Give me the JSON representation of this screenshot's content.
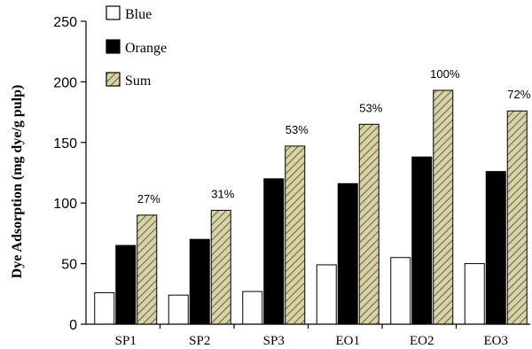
{
  "chart_data": {
    "type": "bar",
    "categories": [
      "SP1",
      "SP2",
      "SP3",
      "EO1",
      "EO2",
      "EO3"
    ],
    "series": [
      {
        "name": "Blue",
        "values": [
          26,
          24,
          27,
          49,
          55,
          50
        ],
        "color": "#ffffff"
      },
      {
        "name": "Orange",
        "values": [
          65,
          70,
          120,
          116,
          138,
          126
        ],
        "color": "#000000"
      },
      {
        "name": "Sum",
        "values": [
          90,
          94,
          147,
          165,
          193,
          176
        ],
        "color": "#d8d2a4"
      }
    ],
    "annotations": [
      "27%",
      "31%",
      "53%",
      "53%",
      "100%",
      "72%"
    ],
    "ylabel": "Dye Adsorption (mg dye/g pulp)",
    "ylim": [
      0,
      250
    ],
    "yticks": [
      0,
      50,
      100,
      150,
      200,
      250
    ],
    "grid": false,
    "legend": "top-left"
  }
}
